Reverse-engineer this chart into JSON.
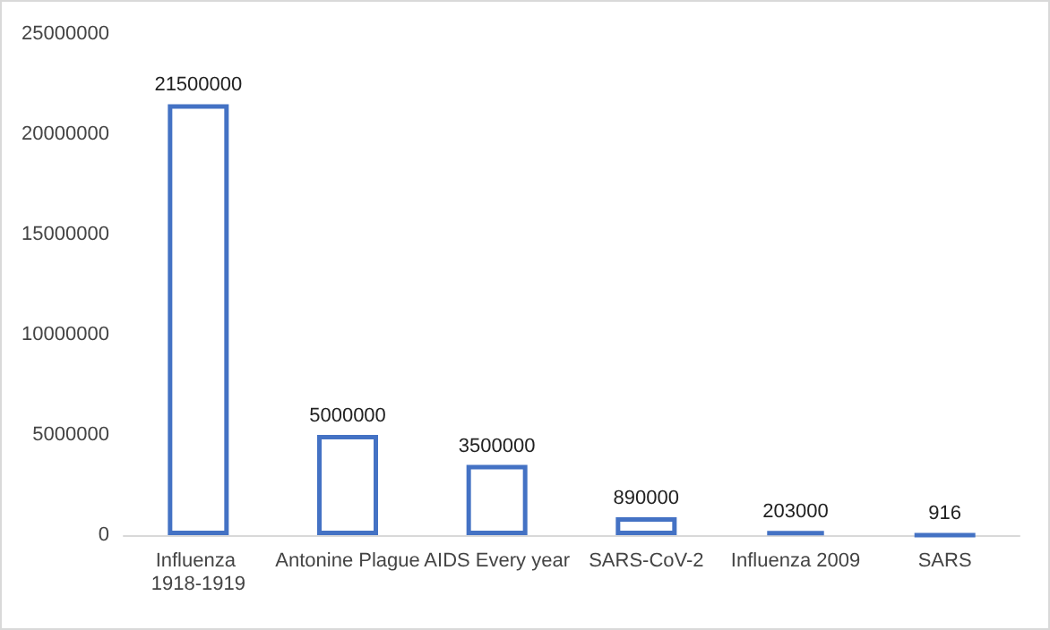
{
  "chart_data": {
    "type": "bar",
    "categories": [
      "Influenza 1918-1919",
      "Antonine Plague",
      "AIDS Every year",
      "SARS-CoV-2",
      "Influenza 2009",
      "SARS"
    ],
    "values": [
      21500000,
      5000000,
      3500000,
      890000,
      203000,
      916
    ],
    "color": "#4472c4",
    "ylim": [
      0,
      25000000
    ],
    "yticks": [
      0,
      5000000,
      10000000,
      15000000,
      20000000,
      25000000
    ],
    "grid": false,
    "data_labels": true
  }
}
